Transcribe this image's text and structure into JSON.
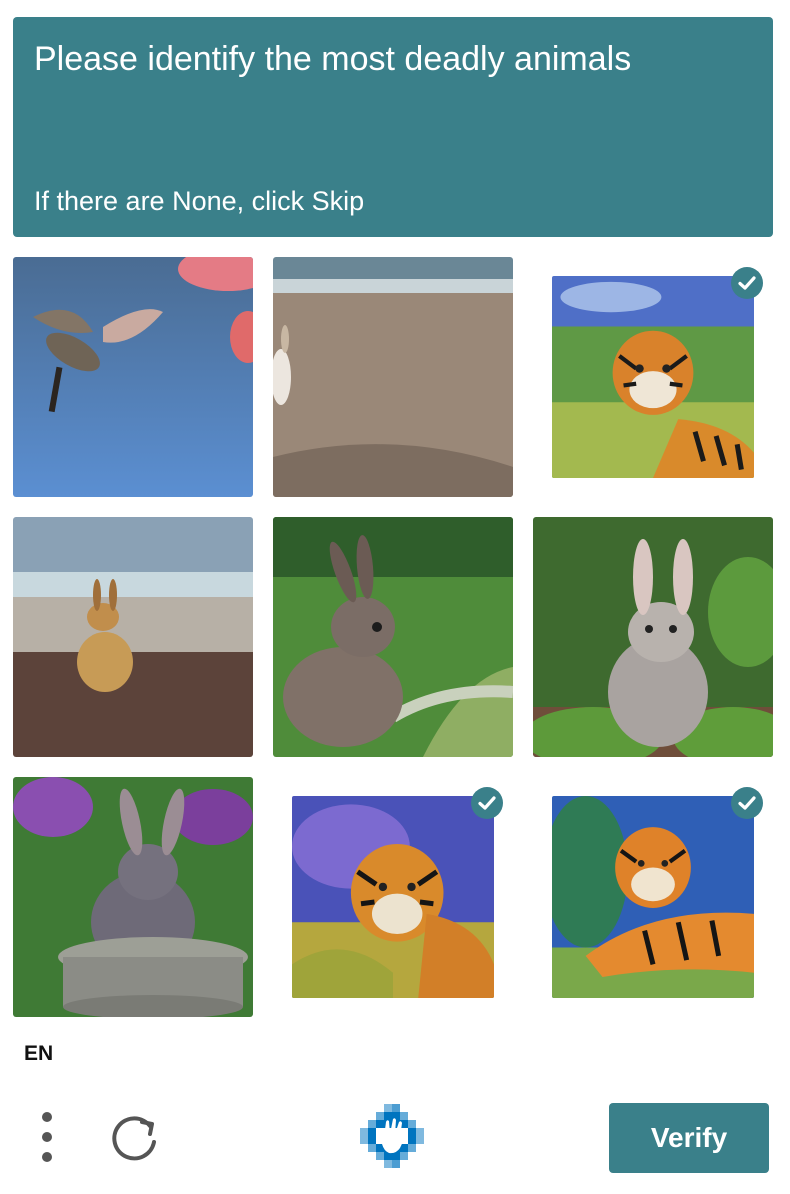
{
  "challenge": {
    "prompt": "Please identify the most deadly animals",
    "hint": "If there are None, click Skip"
  },
  "tiles": [
    {
      "subject": "hummingbird",
      "selected": false
    },
    {
      "subject": "rabbit on beach (partial)",
      "selected": false
    },
    {
      "subject": "tiger in grass",
      "selected": true
    },
    {
      "subject": "rabbit on beach",
      "selected": false
    },
    {
      "subject": "rabbit in garden",
      "selected": false
    },
    {
      "subject": "rabbit in garden",
      "selected": false
    },
    {
      "subject": "rabbit in flower pot",
      "selected": false
    },
    {
      "subject": "tiger in grass",
      "selected": true
    },
    {
      "subject": "tiger lying",
      "selected": true
    }
  ],
  "footer": {
    "language": "EN",
    "verify_label": "Verify"
  },
  "icons": {
    "menu": "more-vertical-icon",
    "refresh": "refresh-icon",
    "logo": "hcaptcha-logo-icon",
    "check": "check-icon"
  },
  "colors": {
    "accent": "#3a808a",
    "text_on_accent": "#ffffff"
  }
}
